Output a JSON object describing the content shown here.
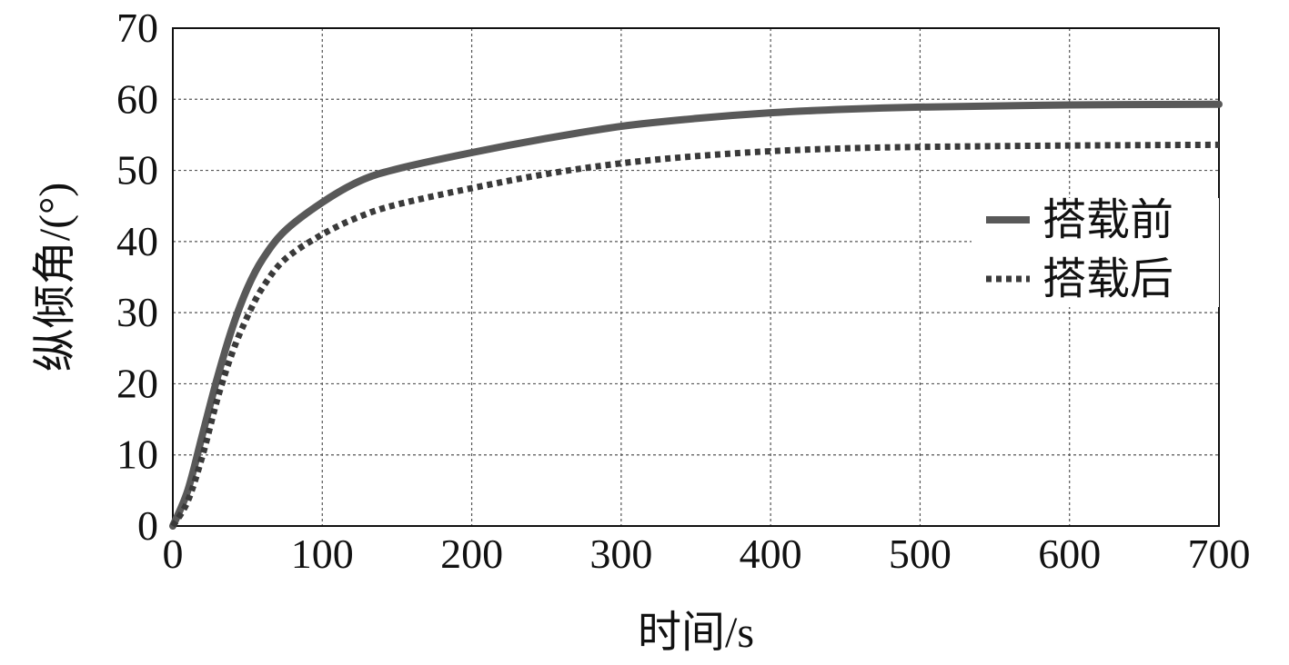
{
  "chart_data": {
    "type": "line",
    "xlabel": "时间/s",
    "ylabel": "纵倾角/(°)",
    "xlim": [
      0,
      700
    ],
    "ylim": [
      0,
      70
    ],
    "x_ticks": [
      0,
      100,
      200,
      300,
      400,
      500,
      600,
      700
    ],
    "y_ticks": [
      0,
      10,
      20,
      30,
      40,
      50,
      60,
      70
    ],
    "grid": true,
    "legend_position": "right",
    "series": [
      {
        "name": "搭载前",
        "style": "solid",
        "color": "#595959",
        "points": [
          [
            0,
            0
          ],
          [
            10,
            5
          ],
          [
            20,
            13
          ],
          [
            30,
            21
          ],
          [
            40,
            28
          ],
          [
            50,
            33.5
          ],
          [
            60,
            37.5
          ],
          [
            75,
            41.5
          ],
          [
            100,
            45.5
          ],
          [
            125,
            48.5
          ],
          [
            150,
            50.2
          ],
          [
            200,
            52.5
          ],
          [
            250,
            54.5
          ],
          [
            300,
            56.2
          ],
          [
            350,
            57.3
          ],
          [
            400,
            58.1
          ],
          [
            450,
            58.6
          ],
          [
            500,
            58.9
          ],
          [
            600,
            59.2
          ],
          [
            700,
            59.3
          ]
        ]
      },
      {
        "name": "搭载后",
        "style": "dotted",
        "color": "#3a3a3a",
        "points": [
          [
            0,
            0
          ],
          [
            10,
            3.5
          ],
          [
            20,
            10
          ],
          [
            30,
            18
          ],
          [
            40,
            24.5
          ],
          [
            50,
            29.5
          ],
          [
            60,
            33.5
          ],
          [
            75,
            37.5
          ],
          [
            100,
            41
          ],
          [
            125,
            43.5
          ],
          [
            150,
            45.2
          ],
          [
            200,
            47.5
          ],
          [
            250,
            49.5
          ],
          [
            300,
            51
          ],
          [
            350,
            52
          ],
          [
            400,
            52.7
          ],
          [
            450,
            53.1
          ],
          [
            500,
            53.3
          ],
          [
            600,
            53.5
          ],
          [
            700,
            53.6
          ]
        ]
      }
    ]
  }
}
